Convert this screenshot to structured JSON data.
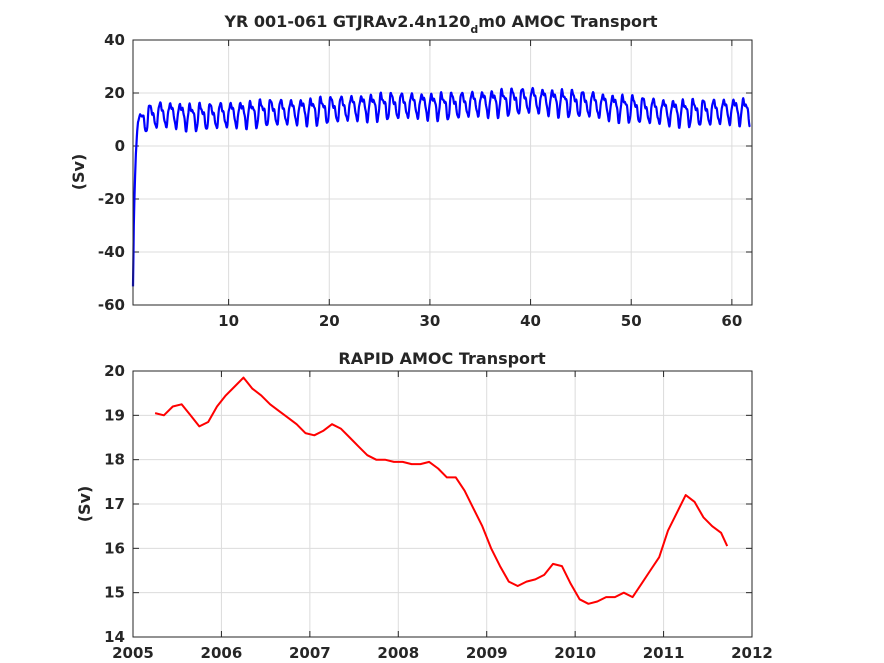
{
  "chart_data": [
    {
      "type": "line",
      "title_main": "YR 001-061 GTJRAv2.4n120",
      "title_sub": "d",
      "title_tail": "m0 AMOC Transport",
      "xlabel": "",
      "ylabel": "(Sv)",
      "xlim": [
        0.5,
        62
      ],
      "ylim": [
        -60,
        40
      ],
      "xticks": [
        10,
        20,
        30,
        40,
        50,
        60
      ],
      "yticks": [
        -60,
        -40,
        -20,
        0,
        20,
        40
      ],
      "xtick_labels": [
        "10",
        "20",
        "30",
        "40",
        "50",
        "60"
      ],
      "ytick_labels": [
        "-60",
        "-40",
        "-20",
        "0",
        "20",
        "40"
      ],
      "grid": true,
      "color": "#0000ff",
      "series": [
        {
          "x": [
            0.5,
            0.55,
            0.6,
            0.7,
            0.8,
            0.9,
            1.0,
            1.2,
            1.4,
            1.6,
            1.8,
            2.0,
            2.5,
            3,
            4,
            5,
            6,
            8,
            10,
            12,
            14,
            16,
            18,
            20,
            22,
            24,
            26,
            28,
            30,
            32,
            34,
            36,
            38,
            40,
            42,
            44,
            46,
            48,
            50,
            52,
            54,
            56,
            58,
            60,
            61.8
          ],
          "y": [
            -53,
            -40,
            -25,
            -12,
            -2,
            5,
            9,
            12,
            11,
            10,
            10.5,
            11,
            11.5,
            12,
            12,
            12,
            11.5,
            11.5,
            12,
            12.5,
            13,
            13,
            13.5,
            14,
            14.5,
            15,
            15.5,
            15.5,
            15.5,
            15.5,
            16,
            16.5,
            17,
            17.5,
            17,
            16.5,
            16,
            15,
            14.5,
            13.5,
            13,
            13,
            13,
            13.5,
            13.5
          ],
          "seasonal_amplitude": 4
        }
      ]
    },
    {
      "type": "line",
      "title": "RAPID AMOC Transport",
      "xlabel": "",
      "ylabel": "(Sv)",
      "xlim": [
        2005,
        2012
      ],
      "ylim": [
        14,
        20
      ],
      "xticks": [
        2005,
        2006,
        2007,
        2008,
        2009,
        2010,
        2011,
        2012
      ],
      "yticks": [
        14,
        15,
        16,
        17,
        18,
        19,
        20
      ],
      "xtick_labels": [
        "2005",
        "2006",
        "2007",
        "2008",
        "2009",
        "2010",
        "2011",
        "2012"
      ],
      "ytick_labels": [
        "14",
        "15",
        "16",
        "17",
        "18",
        "19",
        "20"
      ],
      "grid": true,
      "color": "#ff0000",
      "series": [
        {
          "x": [
            2005.25,
            2005.35,
            2005.45,
            2005.55,
            2005.65,
            2005.75,
            2005.85,
            2005.95,
            2006.05,
            2006.15,
            2006.25,
            2006.35,
            2006.45,
            2006.55,
            2006.65,
            2006.75,
            2006.85,
            2006.95,
            2007.05,
            2007.15,
            2007.25,
            2007.35,
            2007.45,
            2007.55,
            2007.65,
            2007.75,
            2007.85,
            2007.95,
            2008.05,
            2008.15,
            2008.25,
            2008.35,
            2008.45,
            2008.55,
            2008.65,
            2008.75,
            2008.85,
            2008.95,
            2009.05,
            2009.15,
            2009.25,
            2009.35,
            2009.45,
            2009.55,
            2009.65,
            2009.75,
            2009.85,
            2009.95,
            2010.05,
            2010.15,
            2010.25,
            2010.35,
            2010.45,
            2010.55,
            2010.65,
            2010.75,
            2010.85,
            2010.95,
            2011.05,
            2011.15,
            2011.25,
            2011.35,
            2011.45,
            2011.55,
            2011.65,
            2011.72
          ],
          "y": [
            19.05,
            19.0,
            19.2,
            19.25,
            19.0,
            18.75,
            18.85,
            19.2,
            19.45,
            19.65,
            19.85,
            19.6,
            19.45,
            19.25,
            19.1,
            18.95,
            18.8,
            18.6,
            18.55,
            18.65,
            18.8,
            18.7,
            18.5,
            18.3,
            18.1,
            18.0,
            18.0,
            17.95,
            17.95,
            17.9,
            17.9,
            17.95,
            17.8,
            17.6,
            17.6,
            17.3,
            16.9,
            16.5,
            16.0,
            15.6,
            15.25,
            15.15,
            15.25,
            15.3,
            15.4,
            15.65,
            15.6,
            15.2,
            14.85,
            14.75,
            14.8,
            14.9,
            14.9,
            15.0,
            14.9,
            15.2,
            15.5,
            15.8,
            16.4,
            16.8,
            17.2,
            17.05,
            16.7,
            16.5,
            16.35,
            16.05
          ]
        }
      ]
    }
  ]
}
